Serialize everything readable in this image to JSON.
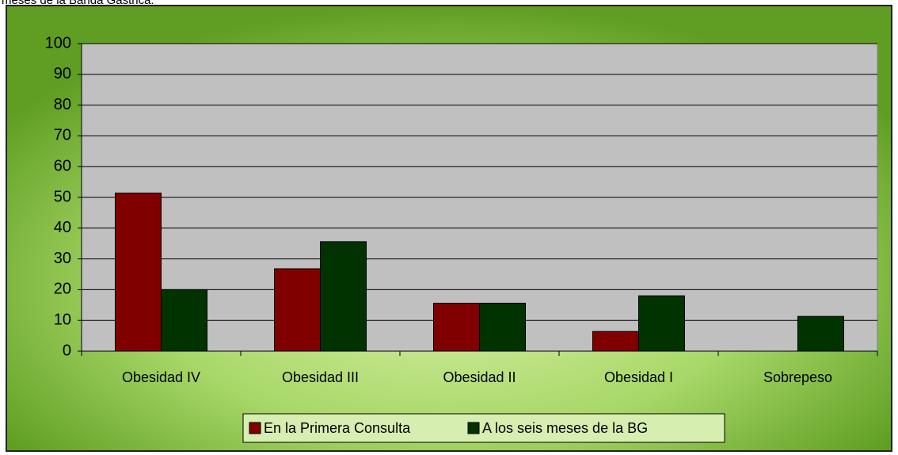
{
  "chart_data": {
    "type": "bar",
    "title": "meses de la Banda Gástrica.",
    "categories": [
      "Obesidad IV",
      "Obesidad III",
      "Obesidad II",
      "Obesidad I",
      "Sobrepeso"
    ],
    "series": [
      {
        "name": "En la Primera Consulta",
        "color": "#800000",
        "values": [
          51.4,
          26.8,
          15.6,
          6.4,
          0
        ]
      },
      {
        "name": "A los seis meses de la BG",
        "color": "#003300",
        "values": [
          20,
          35.6,
          15.6,
          18,
          11.3
        ]
      }
    ],
    "ylim": [
      0,
      100
    ],
    "yticks": [
      0,
      10,
      20,
      30,
      40,
      50,
      60,
      70,
      80,
      90,
      100
    ],
    "grid": true,
    "legend": "bottom"
  }
}
